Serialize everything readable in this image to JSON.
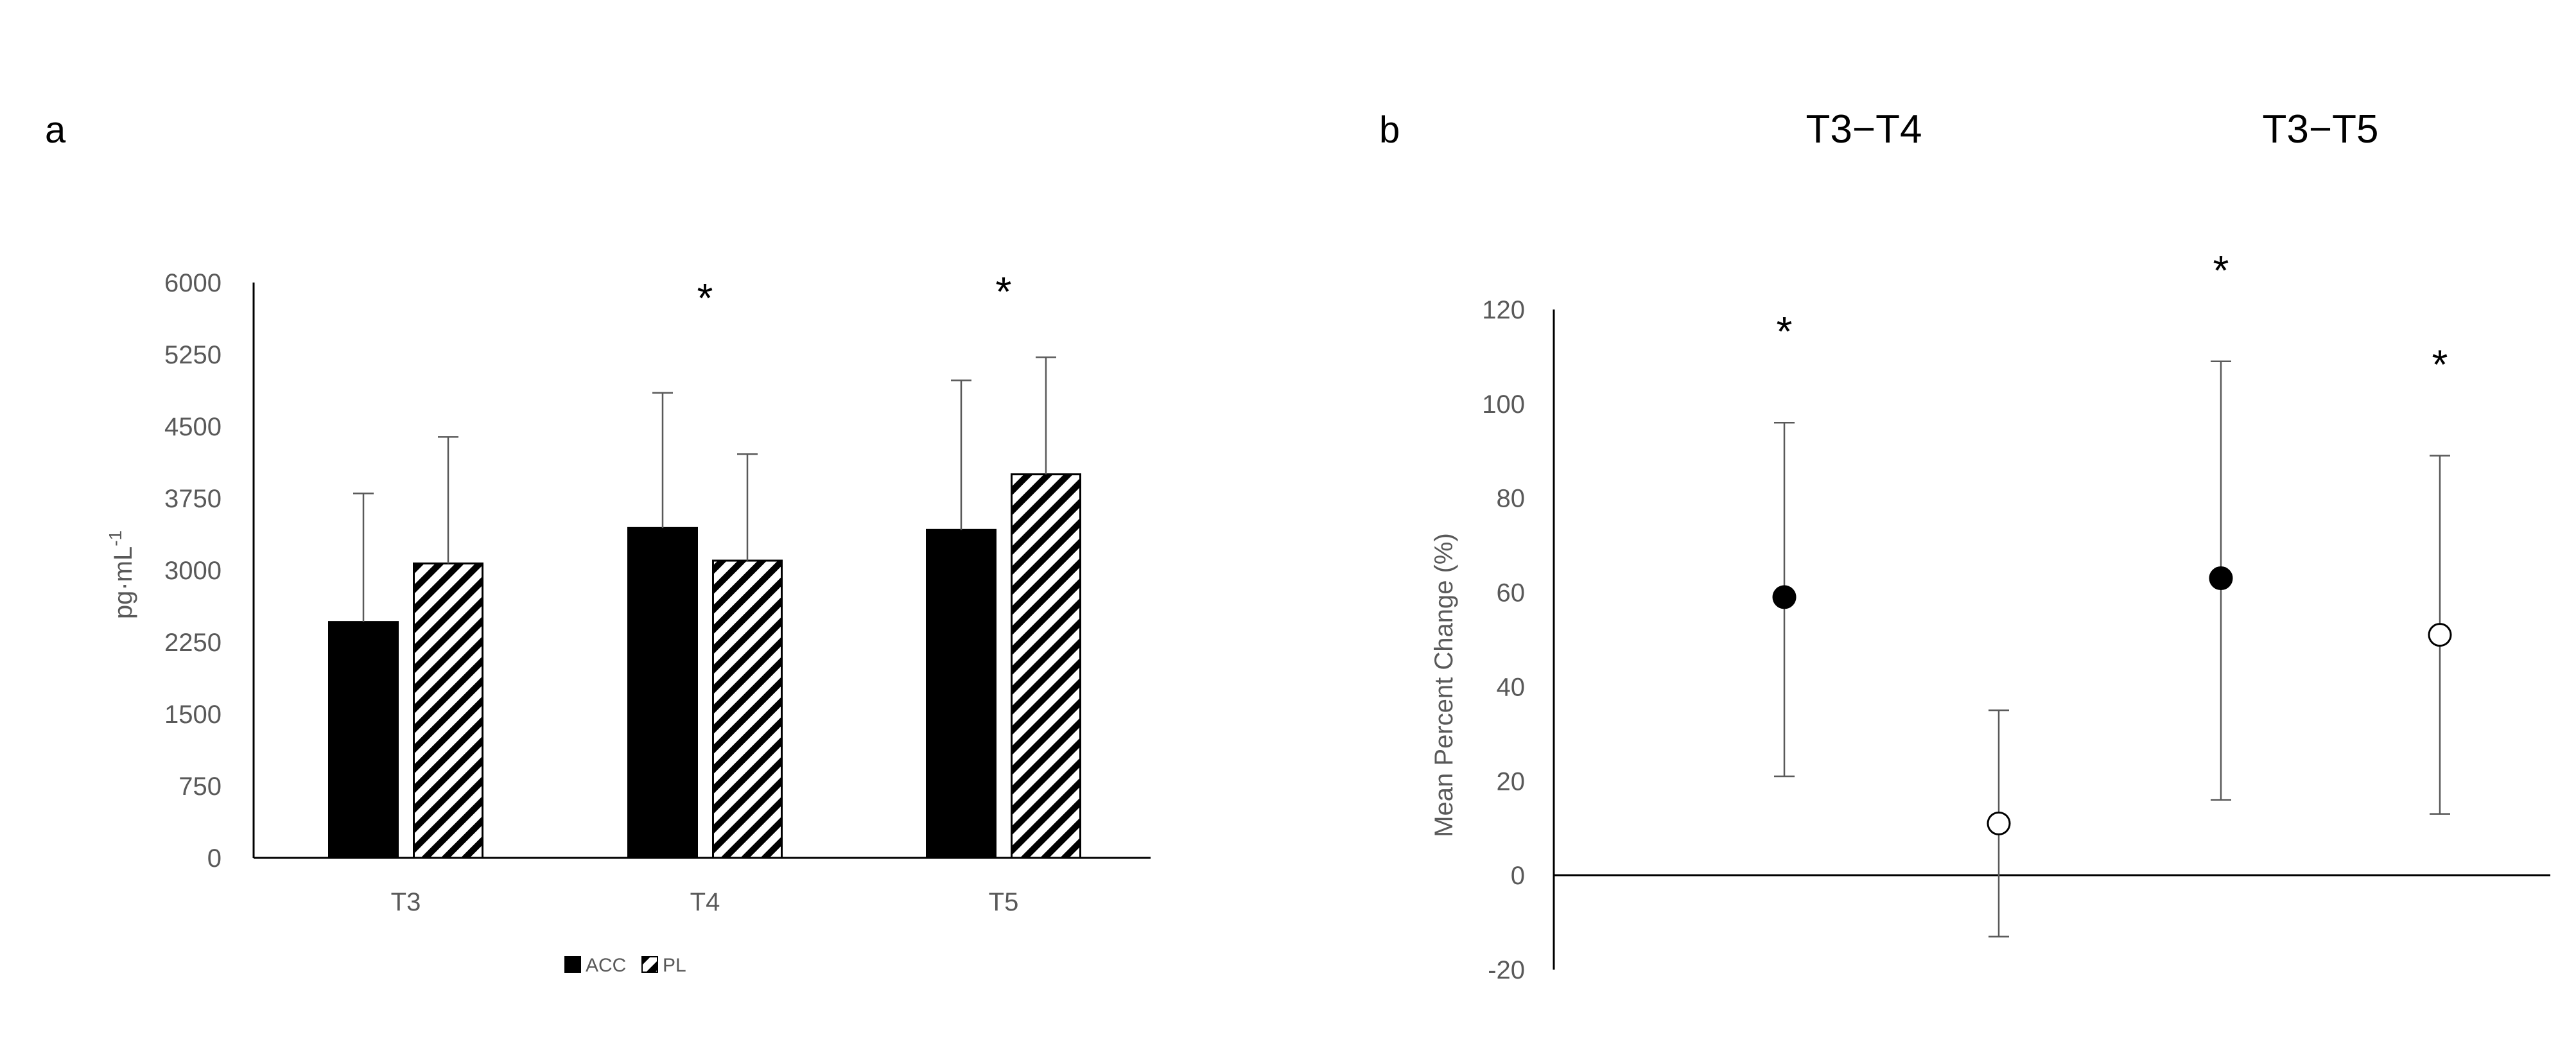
{
  "chart_data": [
    {
      "panel": "a",
      "type": "bar",
      "categories": [
        "T3",
        "T4",
        "T5"
      ],
      "ylabel": "pg·mL",
      "ylabel_sup": "-1",
      "ylim": [
        0,
        6000
      ],
      "yticks": [
        "0",
        "750",
        "1500",
        "2250",
        "3000",
        "3750",
        "4500",
        "5250",
        "6000"
      ],
      "ytick_values": [
        0,
        750,
        1500,
        2250,
        3000,
        3750,
        4500,
        5250,
        6000
      ],
      "grid": false,
      "legend_position": "bottom",
      "series": [
        {
          "name": "ACC",
          "fill": "solid",
          "values": [
            2460,
            3440,
            3420
          ],
          "error": [
            1340,
            1410,
            1560
          ]
        },
        {
          "name": "PL",
          "fill": "hatched",
          "values": [
            3070,
            3100,
            4000
          ],
          "error": [
            1320,
            1110,
            1220
          ]
        }
      ],
      "annotations": [
        {
          "category": "T4",
          "text": "*"
        },
        {
          "category": "T5",
          "text": "*"
        }
      ]
    },
    {
      "panel": "b",
      "type": "scatter",
      "groups": [
        "T3−T4",
        "T3−T5"
      ],
      "ylabel": "Mean Percent Change (%)",
      "ylim": [
        -20,
        120
      ],
      "yticks": [
        "-20",
        "0",
        "20",
        "40",
        "60",
        "80",
        "100",
        "120"
      ],
      "ytick_values": [
        -20,
        0,
        20,
        40,
        60,
        80,
        100,
        120
      ],
      "grid": false,
      "points": [
        {
          "group": "T3−T4",
          "marker": "filled",
          "value": 59,
          "lower": 21,
          "upper": 96,
          "star": "*"
        },
        {
          "group": "T3−T4",
          "marker": "open",
          "value": 11,
          "lower": -13,
          "upper": 35,
          "star": ""
        },
        {
          "group": "T3−T5",
          "marker": "filled",
          "value": 63,
          "lower": 16,
          "upper": 109,
          "star": "*"
        },
        {
          "group": "T3−T5",
          "marker": "open",
          "value": 51,
          "lower": 13,
          "upper": 89,
          "star": "*"
        }
      ]
    }
  ]
}
